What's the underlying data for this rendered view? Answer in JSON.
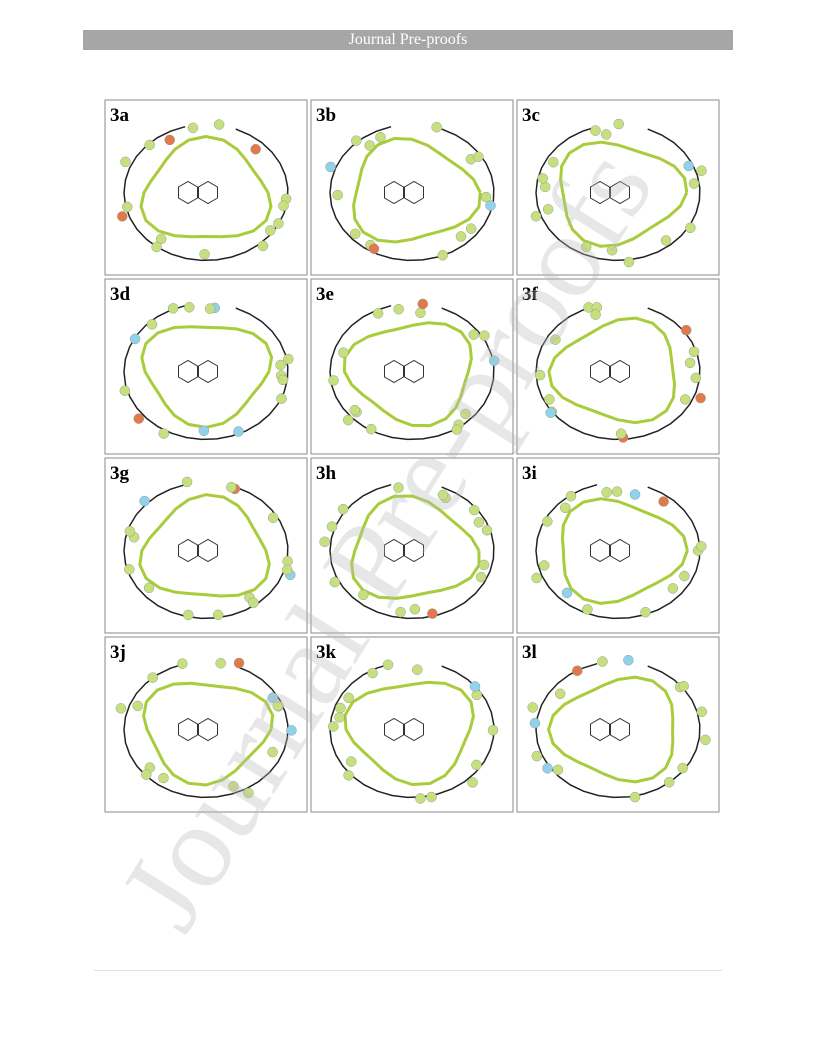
{
  "header": {
    "title": "Journal Pre-proofs"
  },
  "panels": [
    {
      "label": "3a"
    },
    {
      "label": "3b"
    },
    {
      "label": "3c"
    },
    {
      "label": "3d"
    },
    {
      "label": "3e"
    },
    {
      "label": "3f"
    },
    {
      "label": "3g"
    },
    {
      "label": "3h"
    },
    {
      "label": "3i"
    },
    {
      "label": "3j"
    },
    {
      "label": "3k"
    },
    {
      "label": "3l"
    }
  ],
  "watermark": "Journal Pre-proofs"
}
